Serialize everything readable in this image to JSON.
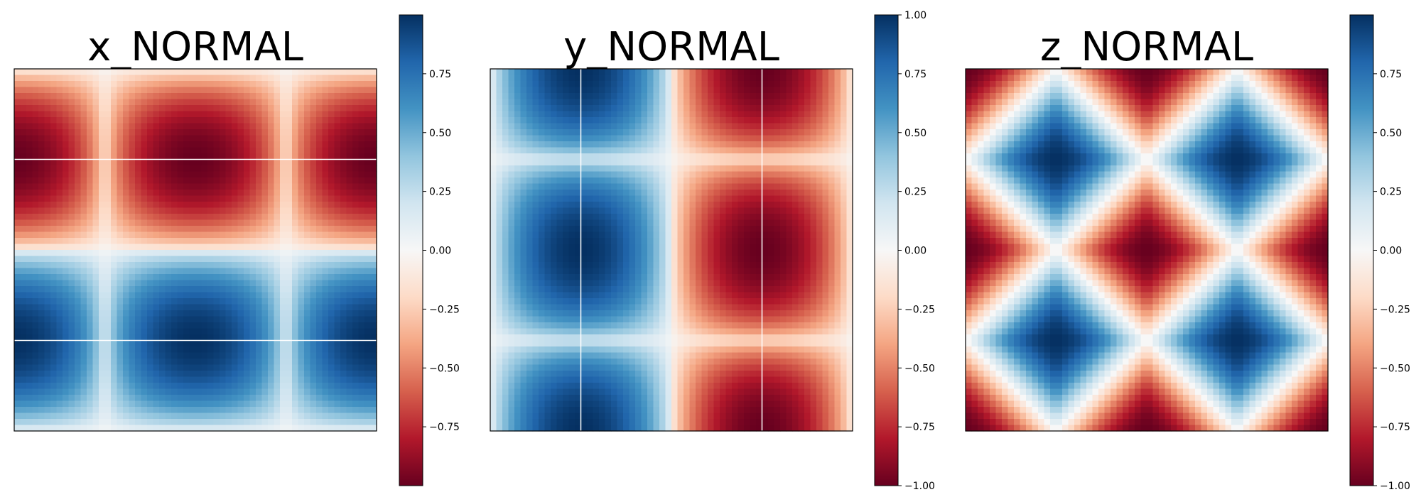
{
  "chart_data": [
    {
      "type": "heatmap",
      "title": "x_NORMAL",
      "field": "x_normal",
      "colormap": "RdBu",
      "xlabel": "",
      "ylabel": "",
      "colorbar": {
        "range": [
          -1,
          1
        ],
        "ticks": [
          "0.75",
          "0.50",
          "0.25",
          "0.00",
          "−0.25",
          "−0.50",
          "−0.75"
        ]
      }
    },
    {
      "type": "heatmap",
      "title": "y_NORMAL",
      "field": "y_normal",
      "colormap": "RdBu",
      "xlabel": "",
      "ylabel": "",
      "colorbar": {
        "range": [
          -1,
          1
        ],
        "ticks": [
          "1.00",
          "0.75",
          "0.50",
          "0.25",
          "0.00",
          "−0.25",
          "−0.50",
          "−0.75",
          "−1.00"
        ]
      }
    },
    {
      "type": "heatmap",
      "title": "z_NORMAL",
      "field": "z_normal",
      "colormap": "RdBu",
      "xlabel": "",
      "ylabel": "",
      "colorbar": {
        "range": [
          -1,
          1
        ],
        "ticks": [
          "0.75",
          "0.50",
          "0.25",
          "0.00",
          "−0.25",
          "−0.50",
          "−0.75",
          "−1.00"
        ]
      }
    }
  ],
  "colors": {
    "negative": "#67001f",
    "neutral": "#f7f7f7",
    "positive": "#053061"
  }
}
